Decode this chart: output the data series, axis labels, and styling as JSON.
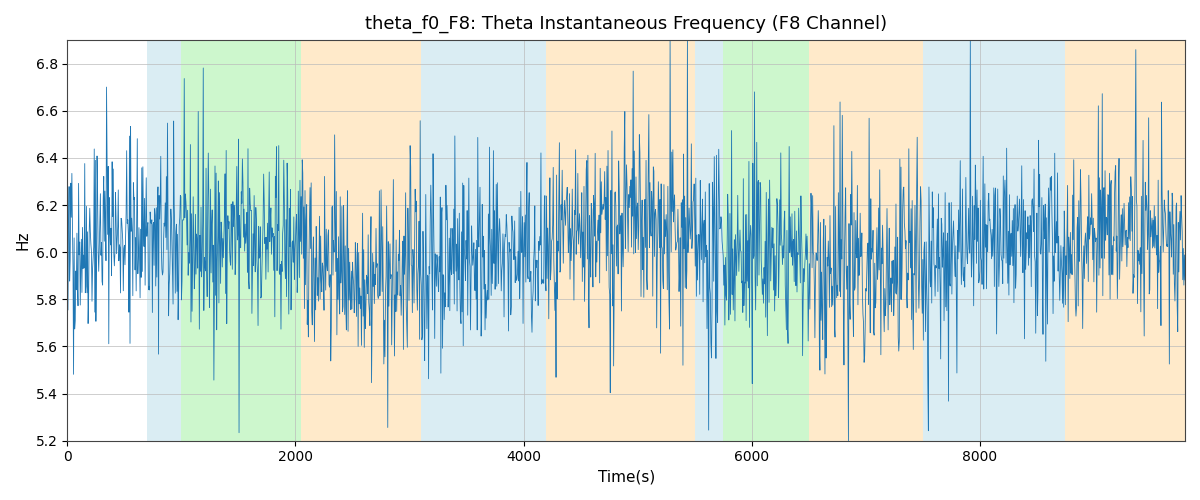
{
  "title": "theta_f0_F8: Theta Instantaneous Frequency (F8 Channel)",
  "xlabel": "Time(s)",
  "ylabel": "Hz",
  "ylim": [
    5.2,
    6.9
  ],
  "xlim": [
    0,
    9800
  ],
  "line_color": "#1f77b4",
  "line_width": 0.6,
  "background_color": "#ffffff",
  "grid_color": "#bbbbbb",
  "title_fontsize": 13,
  "label_fontsize": 11,
  "regions": [
    {
      "xmin": 700,
      "xmax": 1000,
      "color": "#add8e6",
      "alpha": 0.45
    },
    {
      "xmin": 1000,
      "xmax": 2050,
      "color": "#90ee90",
      "alpha": 0.45
    },
    {
      "xmin": 2050,
      "xmax": 3100,
      "color": "#ffd9a0",
      "alpha": 0.55
    },
    {
      "xmin": 3100,
      "xmax": 4200,
      "color": "#add8e6",
      "alpha": 0.45
    },
    {
      "xmin": 4200,
      "xmax": 5500,
      "color": "#ffd9a0",
      "alpha": 0.55
    },
    {
      "xmin": 5500,
      "xmax": 5750,
      "color": "#add8e6",
      "alpha": 0.45
    },
    {
      "xmin": 5750,
      "xmax": 6500,
      "color": "#90ee90",
      "alpha": 0.45
    },
    {
      "xmin": 6500,
      "xmax": 7500,
      "color": "#ffd9a0",
      "alpha": 0.55
    },
    {
      "xmin": 7500,
      "xmax": 8750,
      "color": "#add8e6",
      "alpha": 0.45
    },
    {
      "xmin": 8750,
      "xmax": 9800,
      "color": "#ffd9a0",
      "alpha": 0.55
    }
  ],
  "seed": 42,
  "n_points": 2000,
  "total_time": 9800,
  "base_freq": 6.0,
  "noise_std": 0.18,
  "spike_prob": 0.12,
  "spike_std": 0.28
}
